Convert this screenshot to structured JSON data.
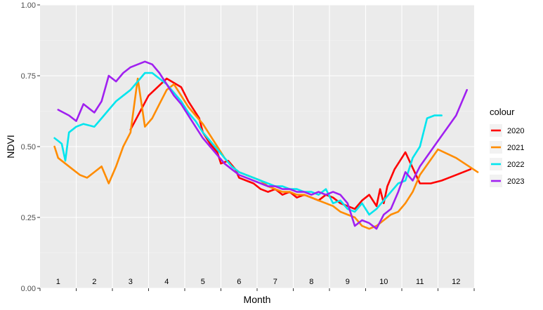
{
  "chart_data": {
    "type": "line",
    "xlabel": "Month",
    "ylabel": "NDVI",
    "xlim": [
      0.5,
      12.5
    ],
    "ylim": [
      0,
      1
    ],
    "x_tick_labels": [
      "1",
      "2",
      "3",
      "4",
      "5",
      "6",
      "7",
      "8",
      "9",
      "10",
      "11",
      "12"
    ],
    "y_ticks": [
      0,
      0.25,
      0.5,
      0.75,
      1.0
    ],
    "y_tick_labels": [
      "0.00",
      "0.25",
      "0.50",
      "0.75",
      "1.00"
    ],
    "grid": true,
    "legend": {
      "title": "colour",
      "placement": "right"
    },
    "series": [
      {
        "name": "2020",
        "color": "#ff0000",
        "x": [
          3.0,
          3.5,
          4.0,
          4.4,
          4.6,
          4.9,
          5.0,
          5.2,
          5.4,
          5.5,
          5.7,
          5.9,
          6.0,
          6.2,
          6.4,
          6.6,
          6.8,
          7.0,
          7.2,
          7.4,
          7.6,
          7.8,
          8.0,
          8.2,
          8.4,
          8.6,
          8.8,
          9.0,
          9.2,
          9.4,
          9.6,
          9.8,
          9.9,
          10.0,
          10.1,
          10.3,
          10.5,
          10.6,
          11.0,
          11.3,
          11.6,
          12.0,
          12.4
        ],
        "values": [
          0.56,
          0.68,
          0.74,
          0.71,
          0.66,
          0.6,
          0.55,
          0.51,
          0.48,
          0.44,
          0.45,
          0.42,
          0.39,
          0.38,
          0.37,
          0.35,
          0.34,
          0.35,
          0.33,
          0.34,
          0.32,
          0.33,
          0.32,
          0.31,
          0.33,
          0.32,
          0.3,
          0.29,
          0.28,
          0.31,
          0.33,
          0.29,
          0.35,
          0.3,
          0.36,
          0.42,
          0.46,
          0.48,
          0.37,
          0.37,
          0.38,
          0.4,
          0.42
        ]
      },
      {
        "name": "2021",
        "color": "#ff8c00",
        "x": [
          0.9,
          1.0,
          1.2,
          1.4,
          1.6,
          1.8,
          2.0,
          2.2,
          2.4,
          2.6,
          2.8,
          3.0,
          3.2,
          3.4,
          3.6,
          3.8,
          4.0,
          4.2,
          4.4,
          4.6,
          4.8,
          5.0,
          5.2,
          5.4,
          5.6,
          5.8,
          6.0,
          6.2,
          6.4,
          6.6,
          6.8,
          7.0,
          7.2,
          7.4,
          7.6,
          7.8,
          8.0,
          8.2,
          8.4,
          8.6,
          8.8,
          9.0,
          9.2,
          9.4,
          9.6,
          9.8,
          10.0,
          10.2,
          10.4,
          10.6,
          10.8,
          11.0,
          11.5,
          12.0,
          12.6
        ],
        "values": [
          0.5,
          0.46,
          0.44,
          0.42,
          0.4,
          0.39,
          0.41,
          0.43,
          0.37,
          0.43,
          0.5,
          0.55,
          0.74,
          0.57,
          0.6,
          0.65,
          0.7,
          0.72,
          0.68,
          0.64,
          0.61,
          0.58,
          0.54,
          0.5,
          0.46,
          0.43,
          0.41,
          0.4,
          0.39,
          0.38,
          0.36,
          0.35,
          0.34,
          0.34,
          0.33,
          0.33,
          0.32,
          0.31,
          0.3,
          0.29,
          0.27,
          0.26,
          0.25,
          0.22,
          0.21,
          0.22,
          0.24,
          0.26,
          0.27,
          0.3,
          0.34,
          0.4,
          0.49,
          0.46,
          0.41
        ]
      },
      {
        "name": "2022",
        "color": "#00e5ee",
        "x": [
          0.9,
          1.0,
          1.1,
          1.2,
          1.3,
          1.5,
          1.7,
          2.0,
          2.2,
          2.4,
          2.6,
          2.8,
          3.0,
          3.2,
          3.4,
          3.6,
          3.8,
          4.0,
          4.2,
          4.4,
          4.6,
          4.8,
          5.0,
          5.2,
          5.4,
          5.6,
          5.8,
          6.0,
          6.2,
          6.4,
          6.6,
          6.8,
          7.0,
          7.2,
          7.4,
          7.6,
          7.8,
          8.0,
          8.2,
          8.4,
          8.6,
          8.8,
          9.0,
          9.2,
          9.4,
          9.6,
          9.8,
          10.0,
          10.2,
          10.4,
          10.6,
          10.8,
          11.0,
          11.2,
          11.4,
          11.6
        ],
        "values": [
          0.53,
          0.52,
          0.51,
          0.45,
          0.55,
          0.57,
          0.58,
          0.57,
          0.6,
          0.63,
          0.66,
          0.68,
          0.7,
          0.73,
          0.76,
          0.76,
          0.74,
          0.72,
          0.69,
          0.66,
          0.62,
          0.59,
          0.55,
          0.52,
          0.49,
          0.46,
          0.43,
          0.41,
          0.4,
          0.39,
          0.38,
          0.37,
          0.36,
          0.36,
          0.35,
          0.35,
          0.34,
          0.34,
          0.33,
          0.35,
          0.3,
          0.31,
          0.28,
          0.27,
          0.3,
          0.26,
          0.28,
          0.31,
          0.34,
          0.37,
          0.38,
          0.46,
          0.5,
          0.6,
          0.61,
          0.61
        ]
      },
      {
        "name": "2023",
        "color": "#a020f0",
        "x": [
          1.0,
          1.3,
          1.5,
          1.7,
          2.0,
          2.2,
          2.4,
          2.6,
          2.8,
          3.0,
          3.2,
          3.4,
          3.6,
          3.8,
          4.0,
          4.2,
          4.4,
          4.6,
          4.8,
          5.0,
          5.2,
          5.4,
          5.6,
          5.8,
          6.0,
          6.2,
          6.4,
          6.6,
          6.8,
          7.0,
          7.2,
          7.4,
          7.6,
          7.8,
          8.0,
          8.2,
          8.4,
          8.6,
          8.8,
          9.0,
          9.2,
          9.4,
          9.6,
          9.8,
          10.0,
          10.2,
          10.4,
          10.6,
          10.8,
          11.0,
          11.5,
          12.0,
          12.3
        ],
        "values": [
          0.63,
          0.61,
          0.59,
          0.65,
          0.62,
          0.66,
          0.75,
          0.73,
          0.76,
          0.78,
          0.79,
          0.8,
          0.79,
          0.76,
          0.72,
          0.68,
          0.65,
          0.61,
          0.57,
          0.53,
          0.5,
          0.47,
          0.44,
          0.42,
          0.4,
          0.39,
          0.38,
          0.37,
          0.36,
          0.36,
          0.35,
          0.35,
          0.34,
          0.34,
          0.33,
          0.34,
          0.33,
          0.34,
          0.33,
          0.3,
          0.22,
          0.24,
          0.23,
          0.21,
          0.26,
          0.28,
          0.34,
          0.41,
          0.38,
          0.43,
          0.52,
          0.61,
          0.7
        ]
      }
    ]
  }
}
